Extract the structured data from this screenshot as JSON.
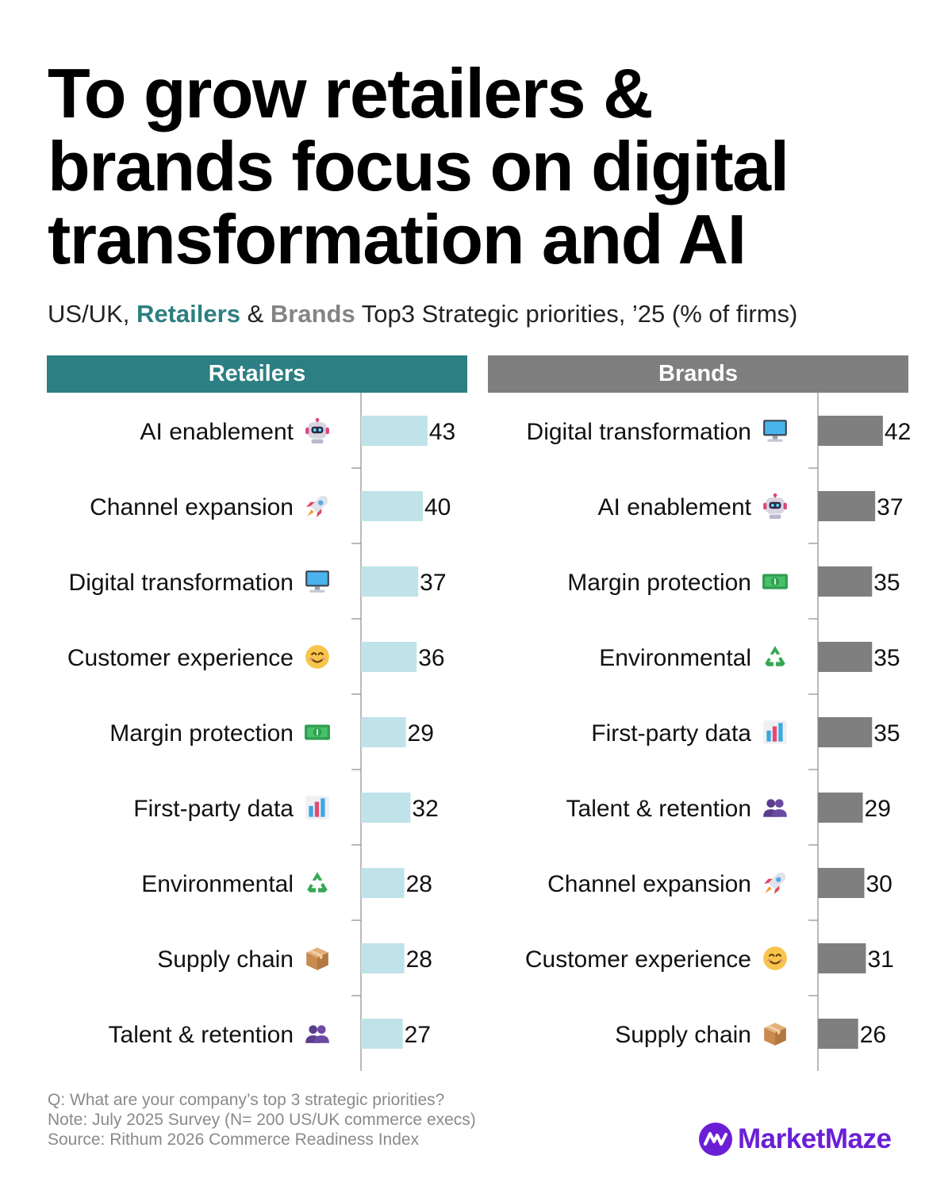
{
  "title_lines": [
    "To grow retailers &",
    "brands focus on digital",
    "transformation and AI"
  ],
  "subtitle": {
    "prefix": "US/UK,",
    "retailers": "Retailers",
    "amp": "&",
    "brands": "Brands",
    "suffix": "Top3 Strategic priorities, ’25 (% of firms)"
  },
  "colors": {
    "retailers_header": "#2c7f82",
    "retailers_bar": "#bfe3e8",
    "brands_header": "#7f7f7f",
    "brands_bar": "#7f7f7f",
    "brand_logo": "#6a1fd6"
  },
  "chart_data": [
    {
      "type": "bar",
      "orientation": "horizontal",
      "title": "Retailers",
      "categories": [
        "AI enablement",
        "Channel expansion",
        "Digital transformation",
        "Customer experience",
        "Margin protection",
        "First-party data",
        "Environmental",
        "Supply chain",
        "Talent & retention"
      ],
      "icons": [
        "robot-icon",
        "rocket-icon",
        "computer-icon",
        "smiley-icon",
        "money-icon",
        "bar-chart-icon",
        "recycle-icon",
        "package-icon",
        "people-icon"
      ],
      "values": [
        43,
        40,
        37,
        36,
        29,
        32,
        28,
        28,
        27
      ],
      "xlim": [
        0,
        100
      ]
    },
    {
      "type": "bar",
      "orientation": "horizontal",
      "title": "Brands",
      "categories": [
        "Digital transformation",
        "AI enablement",
        "Margin protection",
        "Environmental",
        "First-party data",
        "Talent & retention",
        "Channel expansion",
        "Customer experience",
        "Supply chain"
      ],
      "icons": [
        "computer-icon",
        "robot-icon",
        "money-icon",
        "recycle-icon",
        "bar-chart-icon",
        "people-icon",
        "rocket-icon",
        "smiley-icon",
        "package-icon"
      ],
      "values": [
        42,
        37,
        35,
        35,
        35,
        29,
        30,
        31,
        26
      ],
      "xlim": [
        0,
        100
      ]
    }
  ],
  "footnote": {
    "question": "Q: What are your company’s top 3 strategic priorities?",
    "note": "Note: July 2025 Survey (N= 200 US/UK commerce execs)",
    "source": "Source: Rithum 2026 Commerce Readiness Index"
  },
  "brand": {
    "name": "MarketMaze"
  }
}
